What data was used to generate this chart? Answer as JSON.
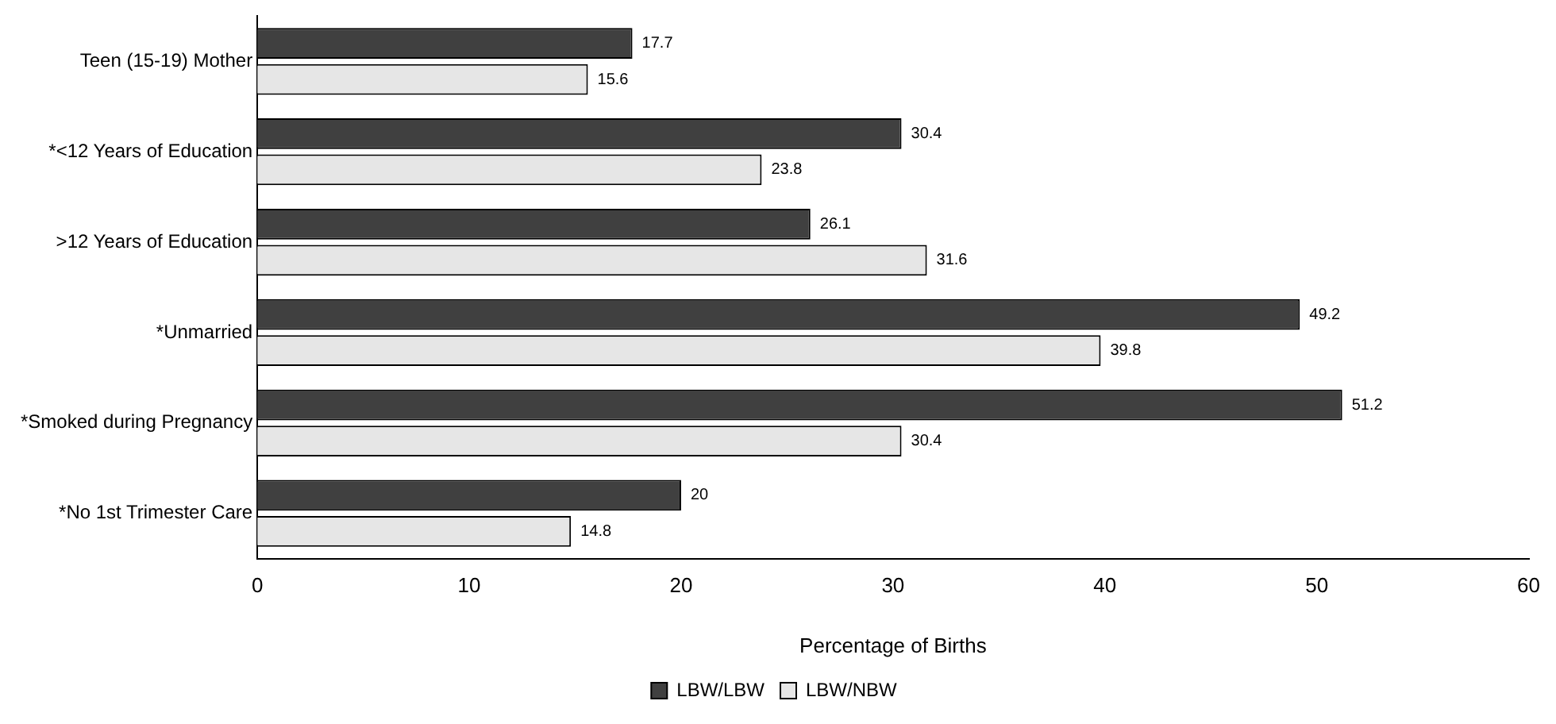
{
  "chart_data": {
    "type": "bar",
    "orientation": "horizontal",
    "xlabel": "Percentage of Births",
    "categories": [
      "Teen (15-19) Mother",
      "*<12 Years of Education",
      ">12 Years of Education",
      "*Unmarried",
      "*Smoked during Pregnancy",
      "*No 1st Trimester Care"
    ],
    "series": [
      {
        "name": "LBW/LBW",
        "color": "#404040",
        "values": [
          17.7,
          30.4,
          26.1,
          49.2,
          51.2,
          20
        ]
      },
      {
        "name": "LBW/NBW",
        "color": "#e6e6e6",
        "values": [
          15.6,
          23.8,
          31.6,
          39.8,
          30.4,
          14.8
        ]
      }
    ],
    "xlim": [
      0,
      60
    ],
    "xticks": [
      0,
      10,
      20,
      30,
      40,
      50,
      60
    ],
    "data_labels": true,
    "grid": false,
    "legend": "bottom"
  }
}
